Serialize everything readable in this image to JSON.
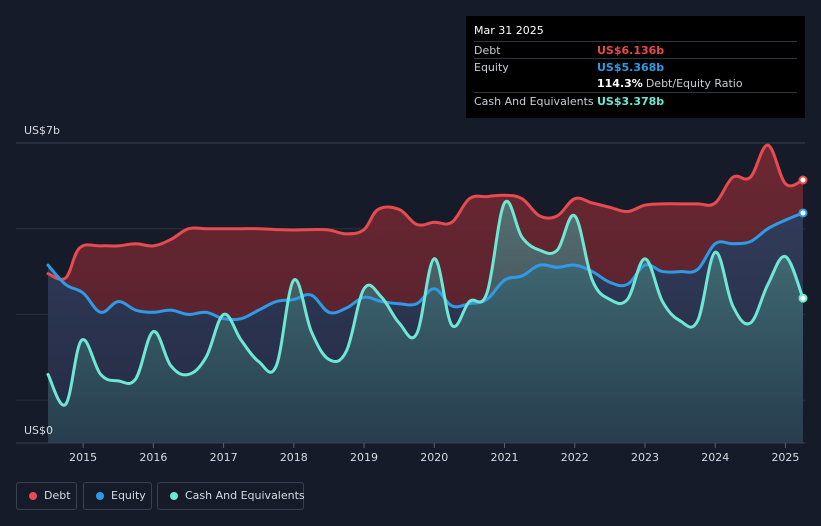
{
  "tooltip": {
    "date": "Mar 31 2025",
    "debt_label": "Debt",
    "debt_value": "US$6.136b",
    "equity_label": "Equity",
    "equity_value": "US$5.368b",
    "ratio_value": "114.3%",
    "ratio_label": "Debt/Equity Ratio",
    "cash_label": "Cash And Equivalents",
    "cash_value": "US$3.378b"
  },
  "legend": {
    "debt": "Debt",
    "equity": "Equity",
    "cash": "Cash And Equivalents"
  },
  "colors": {
    "debt": "#e64b4f",
    "equity": "#2f9be6",
    "cash": "#6ee8d4",
    "background": "#151b28"
  },
  "chart_data": {
    "type": "area",
    "ylabel_top": "US$7b",
    "ylabel_bottom": "US$0",
    "ylim": [
      0,
      7
    ],
    "xlim": [
      2014.5,
      2025.25
    ],
    "x_ticks": [
      "2015",
      "2016",
      "2017",
      "2018",
      "2019",
      "2020",
      "2021",
      "2022",
      "2023",
      "2024",
      "2025"
    ],
    "legend_position": "bottom-left",
    "grid": true,
    "series": [
      {
        "name": "Debt",
        "x": [
          2014.5,
          2014.75,
          2014.95,
          2015.25,
          2015.5,
          2015.75,
          2016.0,
          2016.25,
          2016.5,
          2016.75,
          2017.0,
          2017.25,
          2017.5,
          2017.75,
          2018.0,
          2018.25,
          2018.5,
          2018.75,
          2019.0,
          2019.2,
          2019.5,
          2019.75,
          2020.0,
          2020.25,
          2020.5,
          2020.75,
          2021.0,
          2021.25,
          2021.5,
          2021.75,
          2022.0,
          2022.25,
          2022.5,
          2022.75,
          2023.0,
          2023.25,
          2023.5,
          2023.75,
          2024.0,
          2024.25,
          2024.5,
          2024.75,
          2025.0,
          2025.25
        ],
        "values": [
          3.95,
          3.85,
          4.55,
          4.6,
          4.6,
          4.65,
          4.6,
          4.75,
          5.0,
          5.0,
          5.0,
          5.0,
          5.0,
          4.98,
          4.97,
          4.98,
          4.97,
          4.88,
          4.98,
          5.45,
          5.45,
          5.1,
          5.15,
          5.15,
          5.7,
          5.75,
          5.78,
          5.7,
          5.3,
          5.3,
          5.7,
          5.6,
          5.5,
          5.4,
          5.55,
          5.58,
          5.58,
          5.58,
          5.6,
          6.2,
          6.2,
          6.95,
          6.05,
          6.136
        ]
      },
      {
        "name": "Equity",
        "x": [
          2014.5,
          2014.75,
          2015.0,
          2015.25,
          2015.5,
          2015.75,
          2016.0,
          2016.25,
          2016.5,
          2016.75,
          2017.0,
          2017.25,
          2017.5,
          2017.75,
          2018.0,
          2018.25,
          2018.5,
          2018.75,
          2019.0,
          2019.25,
          2019.5,
          2019.75,
          2020.0,
          2020.25,
          2020.5,
          2020.75,
          2021.0,
          2021.25,
          2021.5,
          2021.75,
          2022.0,
          2022.25,
          2022.5,
          2022.75,
          2023.0,
          2023.25,
          2023.5,
          2023.75,
          2024.0,
          2024.25,
          2024.5,
          2024.75,
          2025.0,
          2025.25
        ],
        "values": [
          4.15,
          3.7,
          3.5,
          3.05,
          3.3,
          3.1,
          3.05,
          3.1,
          3.0,
          3.05,
          2.9,
          2.9,
          3.1,
          3.3,
          3.35,
          3.45,
          3.05,
          3.15,
          3.4,
          3.3,
          3.25,
          3.25,
          3.6,
          3.2,
          3.25,
          3.35,
          3.8,
          3.9,
          4.15,
          4.1,
          4.15,
          4.0,
          3.75,
          3.7,
          4.15,
          4.0,
          4.0,
          4.05,
          4.65,
          4.65,
          4.7,
          5.0,
          5.2,
          5.368
        ]
      },
      {
        "name": "Cash And Equivalents",
        "x": [
          2014.5,
          2014.75,
          2014.98,
          2015.25,
          2015.5,
          2015.75,
          2016.0,
          2016.25,
          2016.5,
          2016.75,
          2017.0,
          2017.25,
          2017.5,
          2017.75,
          2018.0,
          2018.25,
          2018.5,
          2018.75,
          2019.0,
          2019.25,
          2019.5,
          2019.75,
          2020.0,
          2020.25,
          2020.5,
          2020.75,
          2021.0,
          2021.25,
          2021.5,
          2021.75,
          2022.0,
          2022.25,
          2022.5,
          2022.75,
          2023.0,
          2023.25,
          2023.5,
          2023.75,
          2024.0,
          2024.25,
          2024.5,
          2024.75,
          2025.0,
          2025.25
        ],
        "values": [
          1.6,
          0.9,
          2.4,
          1.6,
          1.45,
          1.5,
          2.6,
          1.8,
          1.6,
          2.0,
          3.0,
          2.4,
          1.9,
          1.8,
          3.8,
          2.6,
          1.95,
          2.15,
          3.6,
          3.4,
          2.8,
          2.55,
          4.3,
          2.75,
          3.3,
          3.5,
          5.6,
          4.8,
          4.5,
          4.5,
          5.3,
          3.8,
          3.35,
          3.35,
          4.3,
          3.3,
          2.85,
          2.85,
          4.45,
          3.2,
          2.8,
          3.7,
          4.35,
          3.378
        ]
      }
    ]
  }
}
